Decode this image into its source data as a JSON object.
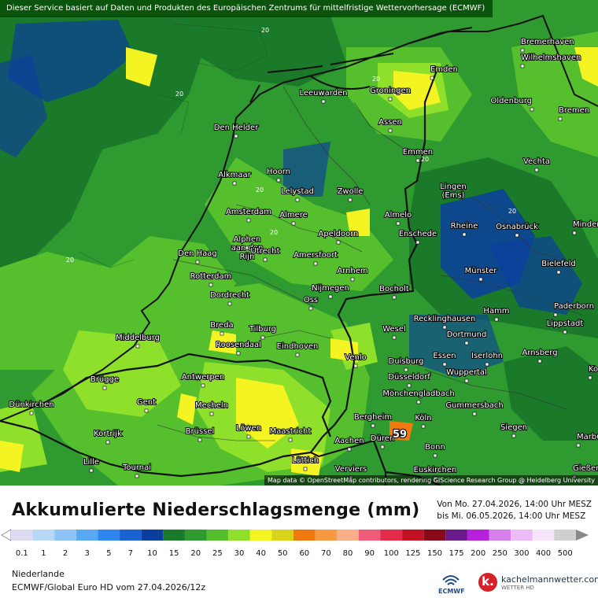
{
  "header": {
    "disclaimer": "Dieser Service basiert auf Daten und Produkten des Europäischen Zentrums für mittelfristige Wettervorhersage (ECMWF)"
  },
  "map": {
    "attribution": "Map data © OpenStreetMap contributors, rendering GIScience Research Group @ Heidelberg University",
    "max_label": "59",
    "isoline_label": "20",
    "cities": [
      {
        "name": "Bremerhaven"
      },
      {
        "name": "Wilhelmshaven"
      },
      {
        "name": "Emden"
      },
      {
        "name": "Oldenburg"
      },
      {
        "name": "Bremen"
      },
      {
        "name": "Leeuwarden"
      },
      {
        "name": "Groningen"
      },
      {
        "name": "Assen"
      },
      {
        "name": "Den Helder"
      },
      {
        "name": "Emmen"
      },
      {
        "name": "Lingen (Ems)"
      },
      {
        "name": "Vechta"
      },
      {
        "name": "Alkmaar"
      },
      {
        "name": "Hoorn"
      },
      {
        "name": "Lelystad"
      },
      {
        "name": "Zwolle"
      },
      {
        "name": "Amsterdam"
      },
      {
        "name": "Almere"
      },
      {
        "name": "Almelo"
      },
      {
        "name": "Rheine"
      },
      {
        "name": "Osnabrück"
      },
      {
        "name": "Minden"
      },
      {
        "name": "Alphen aan den Rijn"
      },
      {
        "name": "Apeldoorn"
      },
      {
        "name": "Enschede"
      },
      {
        "name": "Den Haag"
      },
      {
        "name": "Utrecht"
      },
      {
        "name": "Amersfoort"
      },
      {
        "name": "Bielefeld"
      },
      {
        "name": "Rotterdam"
      },
      {
        "name": "Arnhem"
      },
      {
        "name": "Münster"
      },
      {
        "name": "Dordrecht"
      },
      {
        "name": "Nijmegen"
      },
      {
        "name": "Bocholt"
      },
      {
        "name": "Oss"
      },
      {
        "name": "Hamm"
      },
      {
        "name": "Paderborn"
      },
      {
        "name": "Breda"
      },
      {
        "name": "Tilburg"
      },
      {
        "name": "Recklinghausen"
      },
      {
        "name": "Lippstadt"
      },
      {
        "name": "Middelburg"
      },
      {
        "name": "Wesel"
      },
      {
        "name": "Roosendaal"
      },
      {
        "name": "Eindhoven"
      },
      {
        "name": "Dortmund"
      },
      {
        "name": "Venlo"
      },
      {
        "name": "Essen"
      },
      {
        "name": "Iserlohn"
      },
      {
        "name": "Arnsberg"
      },
      {
        "name": "Duisburg"
      },
      {
        "name": "Wuppertal"
      },
      {
        "name": "Korbach"
      },
      {
        "name": "Brügge"
      },
      {
        "name": "Antwerpen"
      },
      {
        "name": "Düsseldorf"
      },
      {
        "name": "Mönchengladbach"
      },
      {
        "name": "Dünkirchen"
      },
      {
        "name": "Gent"
      },
      {
        "name": "Mecheln"
      },
      {
        "name": "Gummersbach"
      },
      {
        "name": "Bergheim"
      },
      {
        "name": "Köln"
      },
      {
        "name": "Kortrijk"
      },
      {
        "name": "Brüssel"
      },
      {
        "name": "Löwen"
      },
      {
        "name": "Maastricht"
      },
      {
        "name": "Düren"
      },
      {
        "name": "Siegen"
      },
      {
        "name": "Aachen"
      },
      {
        "name": "Bonn"
      },
      {
        "name": "Marburg"
      },
      {
        "name": "Lille"
      },
      {
        "name": "Lüttich"
      },
      {
        "name": "Tournai"
      },
      {
        "name": "Verviers"
      },
      {
        "name": "Euskirchen"
      },
      {
        "name": "Gießen"
      }
    ]
  },
  "legend": {
    "title": "Akkumulierte Niederschlagsmenge (mm)",
    "period_from": "Von Mo. 27.04.2026, 14:00 Uhr MESZ",
    "period_to": "bis Mi. 06.05.2026, 14:00 Uhr MESZ",
    "steps": [
      {
        "label": "0.1",
        "color": "#dcdcf2"
      },
      {
        "label": "1",
        "color": "#b8d8f8"
      },
      {
        "label": "2",
        "color": "#8cc4f8"
      },
      {
        "label": "3",
        "color": "#58a8f4"
      },
      {
        "label": "5",
        "color": "#2f86ee"
      },
      {
        "label": "7",
        "color": "#1a62d0"
      },
      {
        "label": "10",
        "color": "#0c3e9e"
      },
      {
        "label": "15",
        "color": "#1a7a2a"
      },
      {
        "label": "20",
        "color": "#2f9a2f"
      },
      {
        "label": "25",
        "color": "#55bf2d"
      },
      {
        "label": "30",
        "color": "#8fe02a"
      },
      {
        "label": "40",
        "color": "#f4f422"
      },
      {
        "label": "50",
        "color": "#d8d21a"
      },
      {
        "label": "60",
        "color": "#f07a10"
      },
      {
        "label": "70",
        "color": "#f69a42"
      },
      {
        "label": "80",
        "color": "#f8ae86"
      },
      {
        "label": "90",
        "color": "#ef5c7a"
      },
      {
        "label": "100",
        "color": "#e22c4a"
      },
      {
        "label": "125",
        "color": "#c01222"
      },
      {
        "label": "150",
        "color": "#8a0a1a"
      },
      {
        "label": "175",
        "color": "#6a1a8a"
      },
      {
        "label": "200",
        "color": "#b622dc"
      },
      {
        "label": "250",
        "color": "#d880ee"
      },
      {
        "label": "300",
        "color": "#ecbcf6"
      },
      {
        "label": "400",
        "color": "#f6e4fa"
      },
      {
        "label": "500",
        "color": "#cfcfcf"
      }
    ]
  },
  "footer": {
    "region": "Niederlande",
    "model": "ECMWF/Global Euro HD vom  27.04.2026/12z",
    "ecmwf_logo": "ECMWF",
    "brand_logo": "k.",
    "brand_name": "kachelmannwetter.com",
    "brand_sub": "WETTER HD"
  }
}
